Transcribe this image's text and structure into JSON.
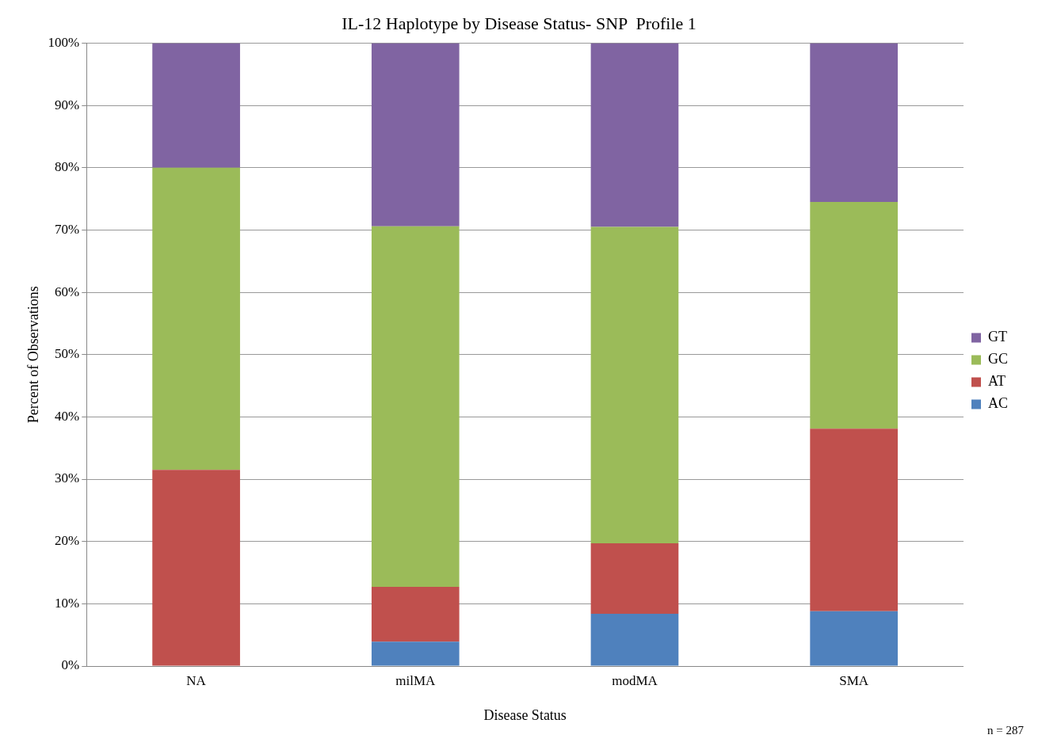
{
  "chart_data": {
    "type": "bar",
    "stacked": true,
    "title": "IL-12 Haplotype by Disease Status- SNP  Profile 1",
    "xlabel": "Disease Status",
    "ylabel": "Percent of Observations",
    "categories": [
      "NA",
      "milMA",
      "modMA",
      "SMA"
    ],
    "series": [
      {
        "name": "AC",
        "color": "#4f81bd",
        "values": [
          0,
          3.9,
          8.4,
          8.8
        ]
      },
      {
        "name": "AT",
        "color": "#c0504d",
        "values": [
          31.5,
          8.8,
          11.3,
          29.3
        ]
      },
      {
        "name": "GC",
        "color": "#9bbb59",
        "values": [
          48.5,
          57.9,
          50.8,
          36.4
        ]
      },
      {
        "name": "GT",
        "color": "#8064a2",
        "values": [
          20,
          29.4,
          29.5,
          25.5
        ]
      }
    ],
    "ylim": [
      0,
      100
    ],
    "yticks": [
      {
        "value": 0,
        "label": "0%"
      },
      {
        "value": 10,
        "label": "10%"
      },
      {
        "value": 20,
        "label": "20%"
      },
      {
        "value": 30,
        "label": "30%"
      },
      {
        "value": 40,
        "label": "40%"
      },
      {
        "value": 50,
        "label": "50%"
      },
      {
        "value": 60,
        "label": "60%"
      },
      {
        "value": 70,
        "label": "70%"
      },
      {
        "value": 80,
        "label": "80%"
      },
      {
        "value": 90,
        "label": "90%"
      },
      {
        "value": 100,
        "label": "100%"
      }
    ],
    "grid": "y",
    "legend": "right",
    "annotations": [
      "n = 287"
    ]
  }
}
